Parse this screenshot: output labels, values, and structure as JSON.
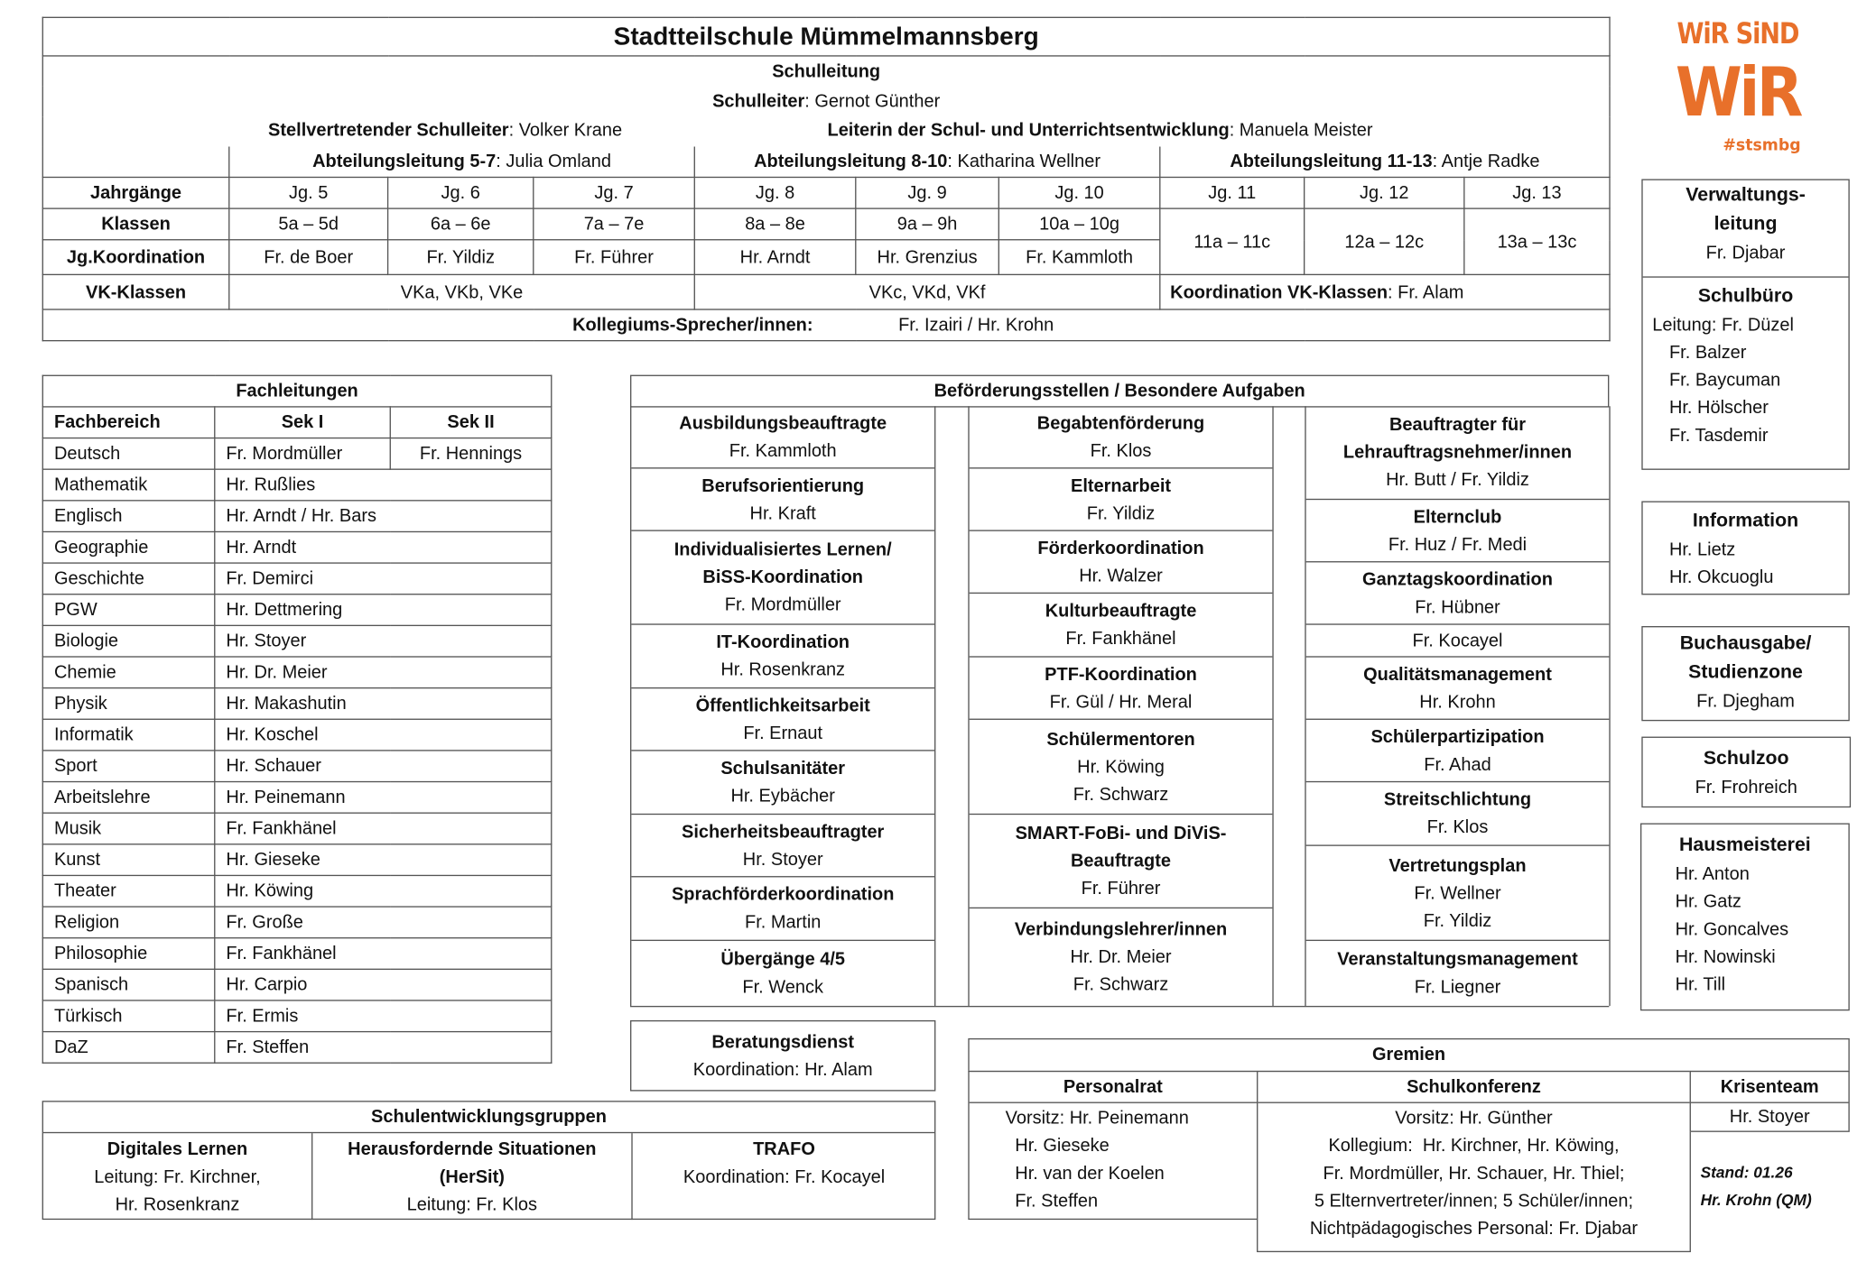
{
  "header": {
    "title": "Stadtteilschule Mümmelmannsberg",
    "schulleitung_heading": "Schulleitung",
    "schulleiter_label": "Schulleiter",
    "schulleiter_name": "Gernot Günther",
    "stellvertreter_label": "Stellvertretender Schulleiter",
    "stellvertreter_name": "Volker Krane",
    "entwicklung_label": "Leiterin der Schul- und Unterrichtsentwicklung",
    "entwicklung_name": "Manuela Meister",
    "abteilungen": [
      {
        "label": "Abteilungsleitung 5-7",
        "name": "Julia Omland"
      },
      {
        "label": "Abteilungsleitung 8-10",
        "name": "Katharina Wellner"
      },
      {
        "label": "Abteilungsleitung 11-13",
        "name": "Antje Radke"
      }
    ]
  },
  "grid": {
    "row_labels": {
      "grades": "Jahrgänge",
      "classes": "Klassen",
      "coordination": "Jg.Koordination",
      "vk": "VK-Klassen"
    },
    "grades": [
      "Jg. 5",
      "Jg. 6",
      "Jg. 7",
      "Jg. 8",
      "Jg. 9",
      "Jg. 10",
      "Jg. 11",
      "Jg. 12",
      "Jg. 13"
    ],
    "classes": [
      "5a – 5d",
      "6a – 6e",
      "7a – 7e",
      "8a – 8e",
      "9a – 9h",
      "10a – 10g",
      "11a – 11c",
      "12a – 12c",
      "13a – 13c"
    ],
    "coordinators": [
      "Fr. de Boer",
      "Fr. Yildiz",
      "Fr. Führer",
      "Hr. Arndt",
      "Hr. Grenzius",
      "Fr. Kammloth"
    ],
    "vk_groups": [
      "VKa, VKb, VKe",
      "VKc, VKd, VKf"
    ],
    "vk_coord_label": "Koordination VK-Klassen",
    "vk_coord_name": "Fr. Alam",
    "kollegium_label": "Kollegiums-Sprecher/innen:",
    "kollegium_names": "Fr. Izairi / Hr. Krohn"
  },
  "logo": {
    "line1": "WiR SiND",
    "line2": "WiR",
    "hashtag": "#stsmbg",
    "color": "#e8702a"
  },
  "fachleitungen": {
    "title": "Fachleitungen",
    "headers": [
      "Fachbereich",
      "Sek I",
      "Sek II"
    ],
    "rows": [
      {
        "subject": "Deutsch",
        "sek1": "Fr. Mordmüller",
        "sek2": "Fr. Hennings"
      },
      {
        "subject": "Mathematik",
        "sek1": "Hr. Rußlies"
      },
      {
        "subject": "Englisch",
        "sek1": "Hr. Arndt / Hr. Bars"
      },
      {
        "subject": "Geographie",
        "sek1": "Hr. Arndt"
      },
      {
        "subject": "Geschichte",
        "sek1": "Fr. Demirci"
      },
      {
        "subject": "PGW",
        "sek1": "Hr. Dettmering"
      },
      {
        "subject": "Biologie",
        "sek1": "Hr. Stoyer"
      },
      {
        "subject": "Chemie",
        "sek1": "Hr. Dr. Meier"
      },
      {
        "subject": "Physik",
        "sek1": "Hr. Makashutin"
      },
      {
        "subject": "Informatik",
        "sek1": "Hr. Koschel"
      },
      {
        "subject": "Sport",
        "sek1": "Hr. Schauer"
      },
      {
        "subject": "Arbeitslehre",
        "sek1": "Hr. Peinemann"
      },
      {
        "subject": "Musik",
        "sek1": "Fr. Fankhänel"
      },
      {
        "subject": "Kunst",
        "sek1": "Hr. Gieseke"
      },
      {
        "subject": "Theater",
        "sek1": "Hr. Köwing"
      },
      {
        "subject": "Religion",
        "sek1": "Fr. Große"
      },
      {
        "subject": "Philosophie",
        "sek1": "Fr. Fankhänel"
      },
      {
        "subject": "Spanisch",
        "sek1": "Hr. Carpio"
      },
      {
        "subject": "Türkisch",
        "sek1": "Fr. Ermis"
      },
      {
        "subject": "DaZ",
        "sek1": "Fr. Steffen"
      }
    ]
  },
  "befoerderung": {
    "title": "Beförderungsstellen / Besondere Aufgaben",
    "columns": [
      [
        {
          "title": [
            "Ausbildungsbeauftragte"
          ],
          "names": [
            "Fr. Kammloth"
          ]
        },
        {
          "title": [
            "Berufsorientierung"
          ],
          "names": [
            "Hr. Kraft"
          ]
        },
        {
          "title": [
            "Individualisiertes Lernen/",
            "BiSS-Koordination"
          ],
          "names": [
            "Fr. Mordmüller"
          ]
        },
        {
          "title": [
            "IT-Koordination"
          ],
          "names": [
            "Hr. Rosenkranz"
          ]
        },
        {
          "title": [
            "Öffentlichkeitsarbeit"
          ],
          "names": [
            "Fr. Ernaut"
          ]
        },
        {
          "title": [
            "Schulsanitäter"
          ],
          "names": [
            "Hr. Eybächer"
          ]
        },
        {
          "title": [
            "Sicherheitsbeauftragter"
          ],
          "names": [
            "Hr. Stoyer"
          ]
        },
        {
          "title": [
            "Sprachförderkoordination"
          ],
          "names": [
            "Fr. Martin"
          ]
        },
        {
          "title": [
            "Übergänge 4/5"
          ],
          "names": [
            "Fr. Wenck"
          ]
        }
      ],
      [
        {
          "title": [
            "Begabtenförderung"
          ],
          "names": [
            "Fr. Klos"
          ]
        },
        {
          "title": [
            "Elternarbeit"
          ],
          "names": [
            "Fr. Yildiz"
          ]
        },
        {
          "title": [
            "Förderkoordination"
          ],
          "names": [
            "Hr. Walzer"
          ]
        },
        {
          "title": [
            "Kulturbeauftragte"
          ],
          "names": [
            "Fr. Fankhänel"
          ]
        },
        {
          "title": [
            "PTF-Koordination"
          ],
          "names": [
            "Fr. Gül / Hr. Meral"
          ]
        },
        {
          "title": [
            "Schülermentoren"
          ],
          "names": [
            "Hr. Köwing",
            "Fr. Schwarz"
          ]
        },
        {
          "title": [
            "SMART-FoBi- und DiViS-",
            "Beauftragte"
          ],
          "names": [
            "Fr. Führer"
          ]
        },
        {
          "title": [
            "Verbindungslehrer/innen"
          ],
          "names": [
            "Hr. Dr. Meier",
            "Fr. Schwarz"
          ]
        }
      ],
      [
        {
          "title": [
            "Beauftragter für",
            "Lehrauftragsnehmer/innen"
          ],
          "names": [
            "Hr. Butt / Fr. Yildiz"
          ]
        },
        {
          "title": [
            "Elternclub"
          ],
          "names": [
            "Fr. Huz / Fr. Medi"
          ]
        },
        {
          "title": [
            "Ganztagskoordination"
          ],
          "names": [
            "Fr. Hübner"
          ]
        },
        {
          "title": [],
          "names": [
            "Fr. Kocayel"
          ]
        },
        {
          "title": [
            "Qualitätsmanagement"
          ],
          "names": [
            "Hr. Krohn"
          ]
        },
        {
          "title": [
            "Schülerpartizipation"
          ],
          "names": [
            "Fr. Ahad"
          ]
        },
        {
          "title": [
            "Streitschlichtung"
          ],
          "names": [
            "Fr. Klos"
          ]
        },
        {
          "title": [
            "Vertretungsplan"
          ],
          "names": [
            "Fr. Wellner",
            "Fr. Yildiz"
          ]
        },
        {
          "title": [
            "Veranstaltungsmanagement"
          ],
          "names": [
            "Fr. Liegner"
          ]
        }
      ]
    ]
  },
  "beratungsdienst": {
    "title": "Beratungsdienst",
    "text": "Koordination: Hr. Alam"
  },
  "schulentwicklung": {
    "title": "Schulentwicklungsgruppen",
    "groups": [
      {
        "title": [
          "Digitales Lernen"
        ],
        "names": [
          "Leitung: Fr. Kirchner,",
          "Hr. Rosenkranz"
        ]
      },
      {
        "title": [
          "Herausfordernde Situationen",
          "(HerSit)"
        ],
        "names": [
          "Leitung: Fr. Klos"
        ]
      },
      {
        "title": [
          "TRAFO"
        ],
        "names": [
          "Koordination: Fr. Kocayel"
        ]
      }
    ]
  },
  "gremien": {
    "title": "Gremien",
    "personalrat": {
      "title": "Personalrat",
      "lines": [
        "Vorsitz: Hr. Peinemann",
        "Hr. Gieseke",
        "Hr. van der Koelen",
        "Fr. Steffen"
      ]
    },
    "schulkonferenz": {
      "title": "Schulkonferenz",
      "lines": [
        "Vorsitz: Hr. Günther",
        "Kollegium:  Hr. Kirchner, Hr. Köwing,",
        "Fr. Mordmüller, Hr. Schauer, Hr. Thiel;",
        "5 Elternvertreter/innen; 5 Schüler/innen;",
        "Nichtpädagogisches Personal: Fr. Djabar"
      ]
    },
    "krisenteam": {
      "title": "Krisenteam",
      "lines": [
        "Hr. Stoyer"
      ]
    }
  },
  "stand": {
    "line1": "Stand: 01.26",
    "line2": "Hr. Krohn (QM)"
  },
  "side": {
    "verwaltung": {
      "title": [
        "Verwaltungs-",
        "leitung"
      ],
      "names": [
        "Fr. Djabar"
      ]
    },
    "schulbuero": {
      "title": [
        "Schulbüro"
      ],
      "names": [
        "Leitung: Fr. Düzel",
        "Fr. Balzer",
        "Fr. Baycuman",
        "Hr. Hölscher",
        "Fr. Tasdemir"
      ]
    },
    "information": {
      "title": [
        "Information"
      ],
      "names": [
        "Hr. Lietz",
        "Hr. Okcuoglu"
      ]
    },
    "buchausgabe": {
      "title": [
        "Buchausgabe/",
        "Studienzone"
      ],
      "names": [
        "Fr. Djegham"
      ]
    },
    "schulzoo": {
      "title": [
        "Schulzoo"
      ],
      "names": [
        "Fr. Frohreich"
      ]
    },
    "hausmeisterei": {
      "title": [
        "Hausmeisterei"
      ],
      "names": [
        "Hr. Anton",
        "Hr. Gatz",
        "Hr. Goncalves",
        "Hr. Nowinski",
        "Hr. Till"
      ]
    }
  }
}
